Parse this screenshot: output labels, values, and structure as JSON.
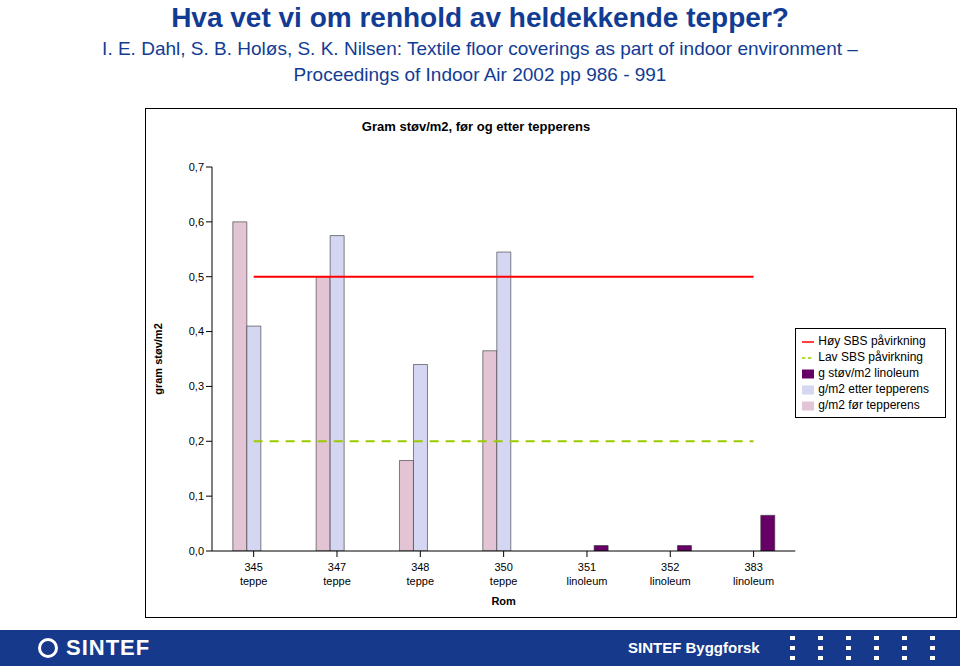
{
  "header": {
    "title": "Hva vet vi om renhold av heldekkende tepper?",
    "subtitle": [
      "I. E. Dahl, S. B. Holøs, S. K. Nilsen: Textile floor coverings as part of indoor environment –",
      "Proceedings of Indoor Air 2002 pp 986 - 991"
    ]
  },
  "chart_data": {
    "type": "bar",
    "title": "Gram støv/m2, før og etter tepperens",
    "xlabel": "Rom",
    "ylabel": "gram støv/m2",
    "categories": [
      "345\nteppe",
      "347\nteppe",
      "348\nteppe",
      "350\nteppe",
      "351\nlinoleum",
      "352\nlinoleum",
      "383\nlinoleum"
    ],
    "series": [
      {
        "name": "g/m2 før tepperens",
        "type": "bar",
        "color": "#e2c4d4",
        "values": [
          0.6,
          0.5,
          0.165,
          0.365,
          null,
          null,
          null
        ]
      },
      {
        "name": "g/m2 etter tepperens",
        "type": "bar",
        "color": "#d4d6f2",
        "values": [
          0.41,
          0.575,
          0.34,
          0.545,
          null,
          null,
          null
        ]
      },
      {
        "name": "g støv/m2  linoleum",
        "type": "bar",
        "color": "#660066",
        "values": [
          null,
          null,
          null,
          null,
          0.01,
          0.01,
          0.065
        ]
      },
      {
        "name": "Høy SBS påvirkning",
        "type": "line",
        "color": "#ff0000",
        "line_style": "solid",
        "values": [
          0.5,
          0.5,
          0.5,
          0.5,
          0.5,
          0.5,
          0.5
        ]
      },
      {
        "name": "Lav SBS påvirkning",
        "type": "line",
        "color": "#99cc00",
        "line_style": "dashed",
        "values": [
          0.2,
          0.2,
          0.2,
          0.2,
          0.2,
          0.2,
          0.2
        ]
      }
    ],
    "ylim": [
      0,
      0.7
    ],
    "yticks": [
      {
        "value": 0,
        "label": "0,0"
      },
      {
        "value": 0.1,
        "label": "0,1"
      },
      {
        "value": 0.2,
        "label": "0,2"
      },
      {
        "value": 0.3,
        "label": "0,3"
      },
      {
        "value": 0.4,
        "label": "0,4"
      },
      {
        "value": 0.5,
        "label": "0,5"
      },
      {
        "value": 0.6,
        "label": "0,6"
      },
      {
        "value": 0.7,
        "label": "0,7"
      }
    ],
    "grid": false,
    "legend": "right"
  },
  "footer": {
    "logo": "SINTEF",
    "text": "SINTEF Byggforsk"
  }
}
